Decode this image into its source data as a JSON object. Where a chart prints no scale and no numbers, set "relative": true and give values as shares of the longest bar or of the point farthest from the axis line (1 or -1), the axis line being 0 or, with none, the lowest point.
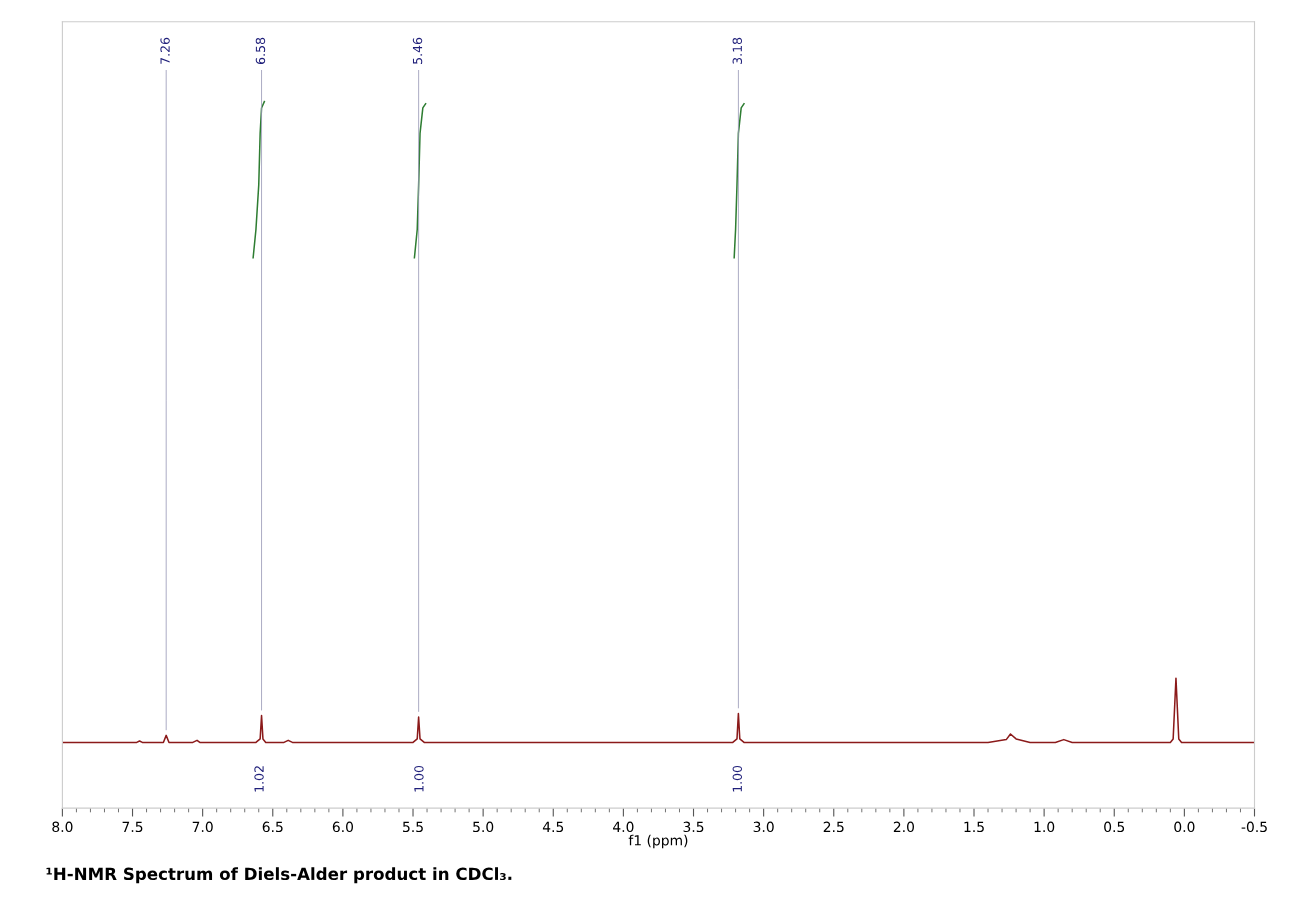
{
  "chart_data": {
    "type": "line",
    "relative": true,
    "xlabel": "f1 (ppm)",
    "xlim": [
      8.0,
      -0.5
    ],
    "xticks": [
      {
        "value": 8,
        "label": "8.0"
      },
      7.5,
      {
        "value": 7,
        "label": "7.0"
      },
      6.5,
      {
        "value": 6,
        "label": "6.0"
      },
      5.5,
      {
        "value": 5,
        "label": "5.0"
      },
      4.5,
      {
        "value": 4,
        "label": "4.0"
      },
      3.5,
      {
        "value": 3,
        "label": "3.0"
      },
      2.5,
      {
        "value": 2,
        "label": "2.0"
      },
      1.5,
      {
        "value": 1,
        "label": "1.0"
      },
      0.5,
      {
        "value": 0,
        "label": "0.0"
      },
      -0.5
    ],
    "tick_labels": "x",
    "grid": false,
    "legend": false,
    "series": [
      {
        "color": "#8b1a1a",
        "x": [
          8.0,
          7.47,
          7.45,
          7.43,
          7.28,
          7.26,
          7.24,
          7.07,
          7.04,
          7.02,
          6.62,
          6.59,
          6.58,
          6.57,
          6.55,
          6.42,
          6.39,
          6.36,
          5.5,
          5.47,
          5.46,
          5.45,
          5.42,
          3.22,
          3.19,
          3.18,
          3.17,
          3.14,
          1.4,
          1.27,
          1.24,
          1.2,
          1.1,
          0.92,
          0.86,
          0.8,
          0.1,
          0.08,
          0.06,
          0.04,
          0.02,
          -0.5
        ],
        "values": [
          0.093,
          0.093,
          0.095,
          0.093,
          0.093,
          0.103,
          0.093,
          0.093,
          0.096,
          0.093,
          0.093,
          0.098,
          0.131,
          0.098,
          0.093,
          0.093,
          0.096,
          0.093,
          0.093,
          0.098,
          0.129,
          0.098,
          0.093,
          0.093,
          0.098,
          0.134,
          0.098,
          0.093,
          0.093,
          0.097,
          0.105,
          0.098,
          0.093,
          0.093,
          0.097,
          0.093,
          0.093,
          0.098,
          0.184,
          0.098,
          0.093,
          0.093
        ]
      },
      {
        "color": "#2e7d32",
        "x": [
          6.64,
          6.62,
          6.6,
          6.59,
          6.58,
          6.56
        ],
        "values": [
          0.779,
          0.819,
          0.882,
          0.955,
          0.991,
          1.0
        ]
      },
      {
        "color": "#2e7d32",
        "x": [
          5.49,
          5.47,
          5.46,
          5.45,
          5.43,
          5.41
        ],
        "values": [
          0.779,
          0.819,
          0.882,
          0.955,
          0.991,
          0.997
        ]
      },
      {
        "color": "#2e7d32",
        "x": [
          3.21,
          3.2,
          3.19,
          3.18,
          3.16,
          3.14
        ],
        "values": [
          0.779,
          0.819,
          0.882,
          0.955,
          0.991,
          0.997
        ]
      }
    ],
    "annotations": [
      {
        "text": "7.26",
        "x": 7.26,
        "y": 0.103
      },
      {
        "text": "6.58",
        "x": 6.58,
        "y": 0.131
      },
      {
        "text": "5.46",
        "x": 5.46,
        "y": 0.129
      },
      {
        "text": "3.18",
        "x": 3.18,
        "y": 0.134
      },
      "1.02",
      "1.00",
      "1.00",
      "¹H-NMR Spectrum of Diels-Alder product in CDCl₃."
    ]
  }
}
